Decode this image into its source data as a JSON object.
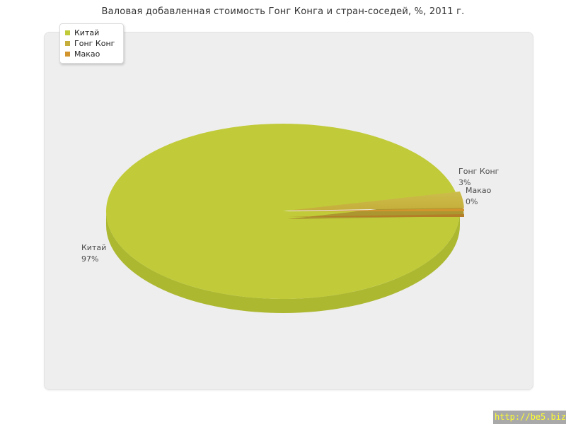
{
  "page": {
    "title": "Валовая добавленная стоимость Гонг Конга и стран-соседей, %, 2011 г."
  },
  "legend": {
    "items": [
      {
        "label": "Китай"
      },
      {
        "label": "Гонг Конг"
      },
      {
        "label": "Макао"
      }
    ]
  },
  "slice_labels": [
    {
      "name": "Китай",
      "percent": "97%"
    },
    {
      "name": "Гонг Конг",
      "percent": "3%"
    },
    {
      "name": "Макао",
      "percent": "0%"
    }
  ],
  "watermark": {
    "url_text": "http://be5.biz/"
  },
  "chart_data": {
    "type": "pie",
    "style": "3d",
    "title": "Валовая добавленная стоимость Гонг Конга и стран-соседей, %, 2011 г.",
    "unit": "%",
    "categories": [
      "Китай",
      "Гонг Конг",
      "Макао"
    ],
    "values": [
      97,
      3,
      0
    ],
    "colors": [
      "#c1cb39",
      "#c5ae3b",
      "#d2952e"
    ],
    "side_colors": [
      "#adb831",
      "#ab9630",
      "#b47d26"
    ],
    "highlight_color": "#ccbd4a",
    "legend_position": "top-left",
    "background": "#eeeeee"
  }
}
